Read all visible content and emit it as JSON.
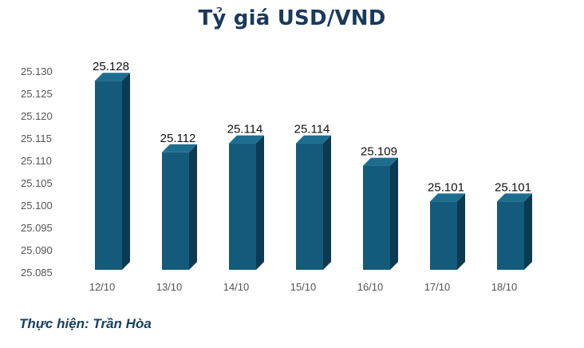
{
  "title": "Tỷ giá USD/VND",
  "credit": "Thực hiện: Trần Hòa",
  "colors": {
    "title": "#1a3a5c",
    "bar_front": "#145a7a",
    "bar_side": "#0c3a52",
    "bar_top": "#1d6d90"
  },
  "chart_data": {
    "type": "bar",
    "categories": [
      "12/10",
      "13/10",
      "14/10",
      "15/10",
      "16/10",
      "17/10",
      "18/10"
    ],
    "values": [
      25128,
      25112,
      25114,
      25114,
      25109,
      25101,
      25101
    ],
    "data_labels": [
      "25.128",
      "25.112",
      "25.114",
      "25.114",
      "25.109",
      "25.101",
      "25.101"
    ],
    "ylim": [
      25085,
      25130
    ],
    "yticks": [
      25130,
      25125,
      25120,
      25115,
      25110,
      25105,
      25100,
      25095,
      25090,
      25085
    ],
    "ytick_labels": [
      "25.130",
      "25.125",
      "25.120",
      "25.115",
      "25.110",
      "25.105",
      "25.100",
      "25.095",
      "25.090",
      "25.085"
    ],
    "grid": false,
    "legend": "none",
    "style": "3d-column"
  }
}
